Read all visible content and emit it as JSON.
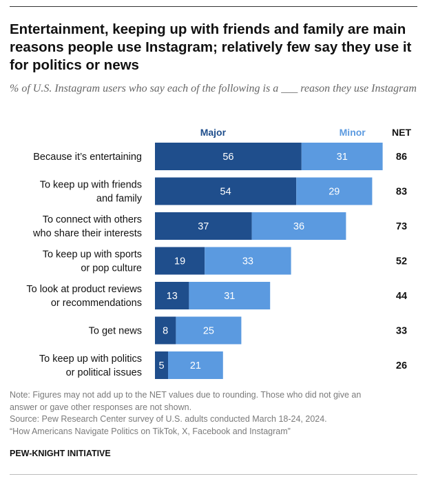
{
  "title": "Entertainment, keeping up with friends and family are main reasons people use Instagram; relatively few say they use it for politics or news",
  "subtitle": "% of U.S. Instagram users who say each of the following is a ___ reason they use Instagram",
  "notes": {
    "note_line1": "Note: Figures may not add up to the NET values due to rounding. Those who did not give an",
    "note_line2": "answer or gave other responses are not shown.",
    "source_line1": "Source: Pew Research Center survey of U.S. adults conducted March 18-24, 2024.",
    "source_line2": "“How Americans Navigate Politics on TikTok, X, Facebook and Instagram”"
  },
  "footer": "PEW-KNIGHT INITIATIVE",
  "colors": {
    "major": "#1f4e8c",
    "minor": "#5b9ae0",
    "major_label": "#1f4e8c",
    "minor_label": "#5b9ae0"
  },
  "chart_data": {
    "type": "bar",
    "orientation": "horizontal",
    "stacked": true,
    "categories": [
      "Because it’s entertaining",
      "To keep up with friends and family",
      "To connect with others who share their interests",
      "To keep up with sports or pop culture",
      "To look at product reviews or recommendations",
      "To get news",
      "To keep up with politics or political issues"
    ],
    "category_lines": [
      [
        "Because it’s entertaining"
      ],
      [
        "To keep up with friends",
        "and family"
      ],
      [
        "To connect with others",
        "who share their interests"
      ],
      [
        "To keep up with sports",
        "or pop culture"
      ],
      [
        "To look at product reviews",
        "or recommendations"
      ],
      [
        "To get news"
      ],
      [
        "To keep up with politics",
        "or political issues"
      ]
    ],
    "series": [
      {
        "name": "Major",
        "values": [
          56,
          54,
          37,
          19,
          13,
          8,
          5
        ]
      },
      {
        "name": "Minor",
        "values": [
          31,
          29,
          36,
          33,
          31,
          25,
          21
        ]
      }
    ],
    "net_label": "NET",
    "net": [
      86,
      83,
      73,
      52,
      44,
      33,
      26
    ],
    "grid": false,
    "legend": "top"
  }
}
